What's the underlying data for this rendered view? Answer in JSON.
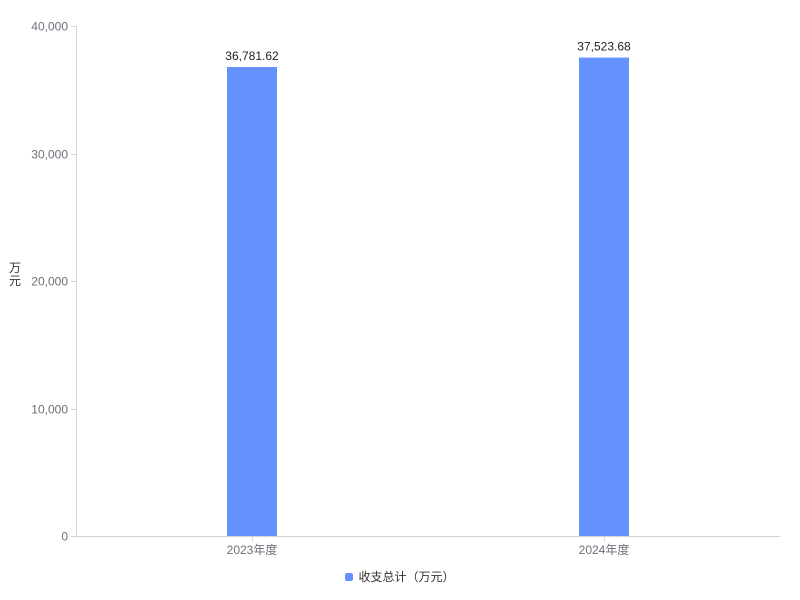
{
  "chart_data": {
    "type": "bar",
    "categories": [
      "2023年度",
      "2024年度"
    ],
    "series": [
      {
        "name": "收支总计（万元）",
        "values": [
          36781.62,
          37523.68
        ],
        "labels": [
          "36,781.62",
          "37,523.68"
        ],
        "color": "#6591fd"
      }
    ],
    "ylabel": "万元",
    "ylim": [
      0,
      40000
    ],
    "yticks": [
      0,
      10000,
      20000,
      30000,
      40000
    ],
    "ytick_labels": [
      "0",
      "10,000",
      "20,000",
      "30,000",
      "40,000"
    ],
    "grid": false,
    "legend_position": "bottom"
  }
}
